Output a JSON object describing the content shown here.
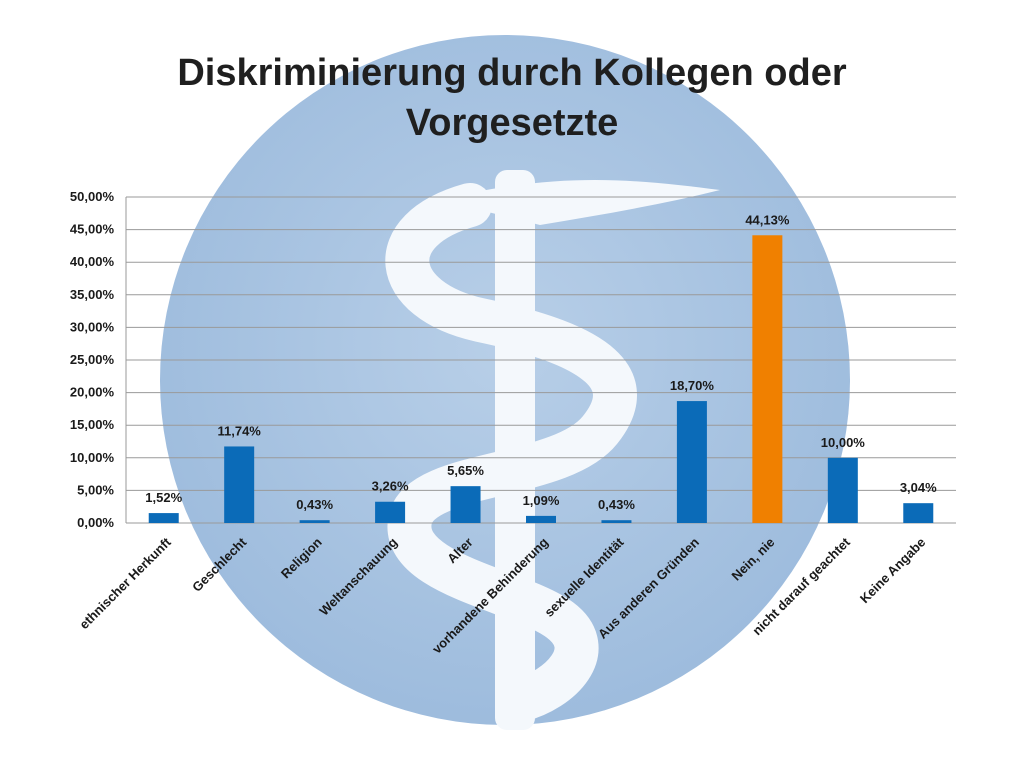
{
  "title": "Diskriminierung durch Kollegen oder Vorgesetzte",
  "chart_data": {
    "type": "bar",
    "title": "Diskriminierung durch Kollegen oder Vorgesetzte",
    "categories": [
      "ethnischer Herkunft",
      "Geschlecht",
      "Religion",
      "Weltanschauung",
      "Alter",
      "vorhandene Behinderung",
      "sexuelle Identität",
      "Aus anderen Gründen",
      "Nein, nie",
      "nicht darauf geachtet",
      "Keine Angabe"
    ],
    "values": [
      1.52,
      11.74,
      0.43,
      3.26,
      5.65,
      1.09,
      0.43,
      18.7,
      44.13,
      10.0,
      3.04
    ],
    "data_labels": [
      "1,52%",
      "11,74%",
      "0,43%",
      "3,26%",
      "5,65%",
      "1,09%",
      "0,43%",
      "18,70%",
      "44,13%",
      "10,00%",
      "3,04%"
    ],
    "ylim": [
      0,
      50
    ],
    "yticks": [
      "0,00%",
      "5,00%",
      "10,00%",
      "15,00%",
      "20,00%",
      "25,00%",
      "30,00%",
      "35,00%",
      "40,00%",
      "45,00%",
      "50,00%"
    ],
    "grid": true,
    "bar_color": "#0b6bb8",
    "highlight_color": "#f08000",
    "highlight_category": "Nein, nie"
  },
  "colors": {
    "emblem_circle": "#a9c3e0",
    "emblem_snake": "#f4f8fc",
    "gridline": "#9a9a9a"
  },
  "icons": {
    "background": "aesculapian-staff-icon"
  }
}
